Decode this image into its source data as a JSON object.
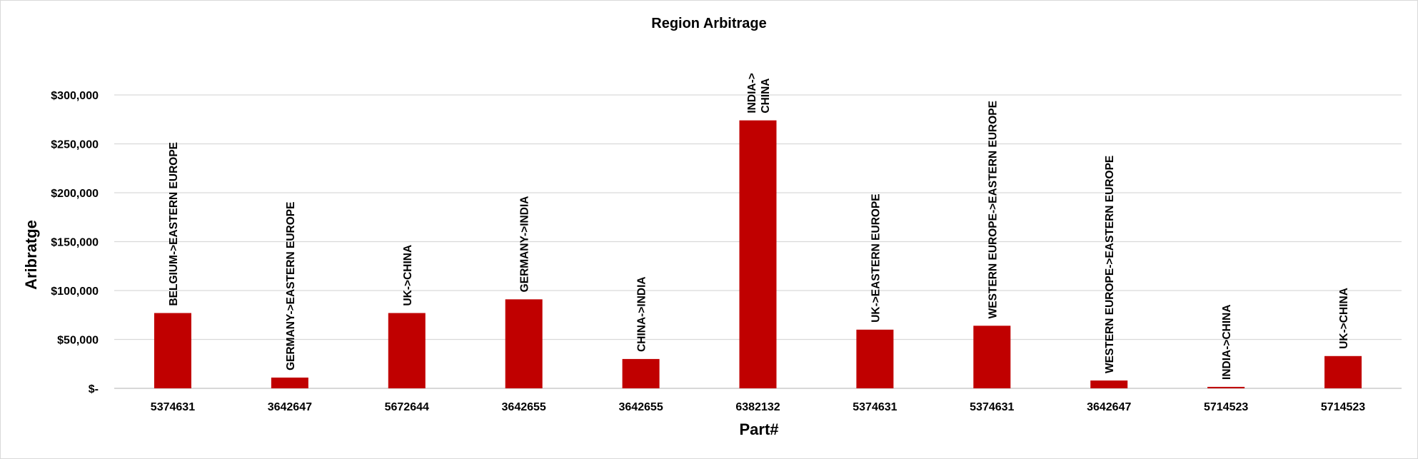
{
  "chart_data": {
    "type": "bar",
    "title": "Region Arbitrage",
    "xlabel": "Part#",
    "ylabel": "Aribratge",
    "ylim": [
      0,
      300000
    ],
    "y_ticks": [
      0,
      50000,
      100000,
      150000,
      200000,
      250000,
      300000
    ],
    "y_tick_labels": [
      "$-",
      "$50,000",
      "$100,000",
      "$150,000",
      "$200,000",
      "$250,000",
      "$300,000"
    ],
    "categories": [
      "5374631",
      "3642647",
      "5672644",
      "3642655",
      "3642655",
      "6382132",
      "5374631",
      "5374631",
      "3642647",
      "5714523",
      "5714523"
    ],
    "values": [
      77000,
      11000,
      77000,
      91000,
      30000,
      274000,
      60000,
      64000,
      8000,
      1500,
      33000
    ],
    "data_labels": [
      [
        "BELGIUM->EASTERN EUROPE"
      ],
      [
        "GERMANY->EASTERN EUROPE"
      ],
      [
        "UK->CHINA"
      ],
      [
        "GERMANY->INDIA"
      ],
      [
        "CHINA->INDIA"
      ],
      [
        "INDIA->",
        "CHINA"
      ],
      [
        "UK->EASTERN EUROPE"
      ],
      [
        "WESTERN EUROPE->EASTERN EUROPE"
      ],
      [
        "WESTERN EUROPE->EASTERN EUROPE"
      ],
      [
        "INDIA->CHINA"
      ],
      [
        "UK->CHINA"
      ]
    ],
    "bar_color": "#c00000",
    "grid": true,
    "legend": "none"
  }
}
